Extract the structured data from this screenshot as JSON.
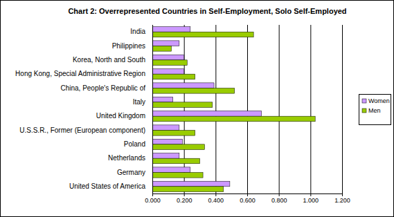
{
  "chart_data": {
    "type": "bar",
    "orientation": "horizontal",
    "title": "Chart 2: Overrepresented Countries in Self-Employment, Solo Self-Employed",
    "categories": [
      "India",
      "Philippines",
      "Korea, North and South",
      "Hong Kong, Special Administrative Region",
      "China, People's Republic of",
      "Italy",
      "United Kingdom",
      "U.S.S.R., Former (European component)",
      "Poland",
      "Netherlands",
      "Germany",
      "United States of America"
    ],
    "series": [
      {
        "name": "Women",
        "color": "#cc99ff",
        "values": [
          0.24,
          0.17,
          0.2,
          0.2,
          0.39,
          0.13,
          0.69,
          0.17,
          0.19,
          0.17,
          0.24,
          0.49
        ]
      },
      {
        "name": "Men",
        "color": "#99cc00",
        "values": [
          0.64,
          0.12,
          0.22,
          0.27,
          0.52,
          0.38,
          1.03,
          0.27,
          0.33,
          0.3,
          0.32,
          0.45
        ]
      }
    ],
    "xlim": [
      0,
      1.2
    ],
    "xticks": [
      {
        "value": 0,
        "label": "0.000"
      },
      {
        "value": 0.2,
        "label": "0.200"
      },
      {
        "value": 0.4,
        "label": "0.400"
      },
      {
        "value": 0.6,
        "label": "0.600"
      },
      {
        "value": 0.8,
        "label": "0.800"
      },
      {
        "value": 1.0,
        "label": "1.000"
      },
      {
        "value": 1.2,
        "label": "1.200"
      }
    ],
    "grid": true,
    "legend": "right"
  }
}
